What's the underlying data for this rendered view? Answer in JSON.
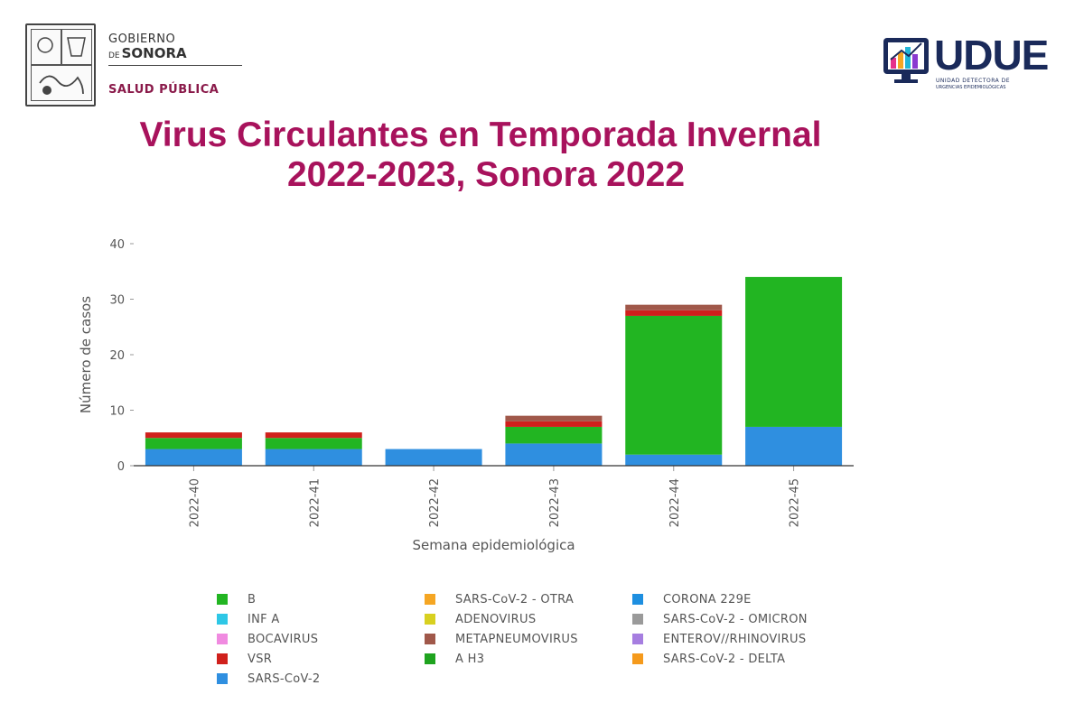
{
  "header": {
    "gov_line1": "GOBIERNO",
    "gov_line2_prefix": "DE",
    "gov_line2": "SONORA",
    "gov_dept": "SALUD PÚBLICA",
    "udue_name": "UDUE",
    "udue_sub": "UNIDAD DETECTORA DE",
    "udue_sub2": "URGENCIAS EPIDEMIOLÓGICAS"
  },
  "title_lines": [
    "Virus Circulantes en Temporada Invernal",
    "2022-2023, Sonora 2022"
  ],
  "colors": {
    "title": "#a8125c",
    "B": "#22b522",
    "INF A": "#2ec7e6",
    "BOCAVIRUS": "#f08ae0",
    "VSR": "#d0201c",
    "SARS-CoV-2": "#2f8fe0",
    "SARS-CoV-2 - OTRA": "#f5a623",
    "ADENOVIRUS": "#d8d020",
    "METAPNEUMOVIRUS": "#a0584a",
    "A H3": "#1fa31f",
    "CORONA 229E": "#1e8fe0",
    "SARS-CoV-2 - OMICRON": "#9a9a9a",
    "ENTEROV//RHINOVIRUS": "#a67ee0",
    "SARS-CoV-2 - DELTA": "#f59a1c"
  },
  "chart_data": {
    "type": "bar",
    "stacked": true,
    "title": "",
    "xlabel": "Semana epidemiológica",
    "ylabel": "Número de casos",
    "categories": [
      "2022-40",
      "2022-41",
      "2022-42",
      "2022-43",
      "2022-44",
      "2022-45"
    ],
    "ylim": [
      0,
      40
    ],
    "yticks": [
      0,
      10,
      20,
      30,
      40
    ],
    "series": [
      {
        "name": "SARS-CoV-2",
        "values": [
          3,
          3,
          3,
          4,
          2,
          7
        ]
      },
      {
        "name": "B",
        "values": [
          2,
          2,
          0,
          3,
          25,
          27
        ]
      },
      {
        "name": "VSR",
        "values": [
          1,
          1,
          0,
          1,
          1,
          0
        ]
      },
      {
        "name": "METAPNEUMOVIRUS",
        "values": [
          0,
          0,
          0,
          1,
          1,
          0
        ]
      }
    ],
    "legend": {
      "position": "bottom",
      "columns": [
        [
          "B",
          "INF A",
          "BOCAVIRUS",
          "VSR",
          "SARS-CoV-2"
        ],
        [
          "SARS-CoV-2 - OTRA",
          "ADENOVIRUS",
          "METAPNEUMOVIRUS",
          "A H3"
        ],
        [
          "CORONA 229E",
          "SARS-CoV-2 - OMICRON",
          "ENTEROV//RHINOVIRUS",
          "SARS-CoV-2 - DELTA"
        ]
      ]
    }
  }
}
